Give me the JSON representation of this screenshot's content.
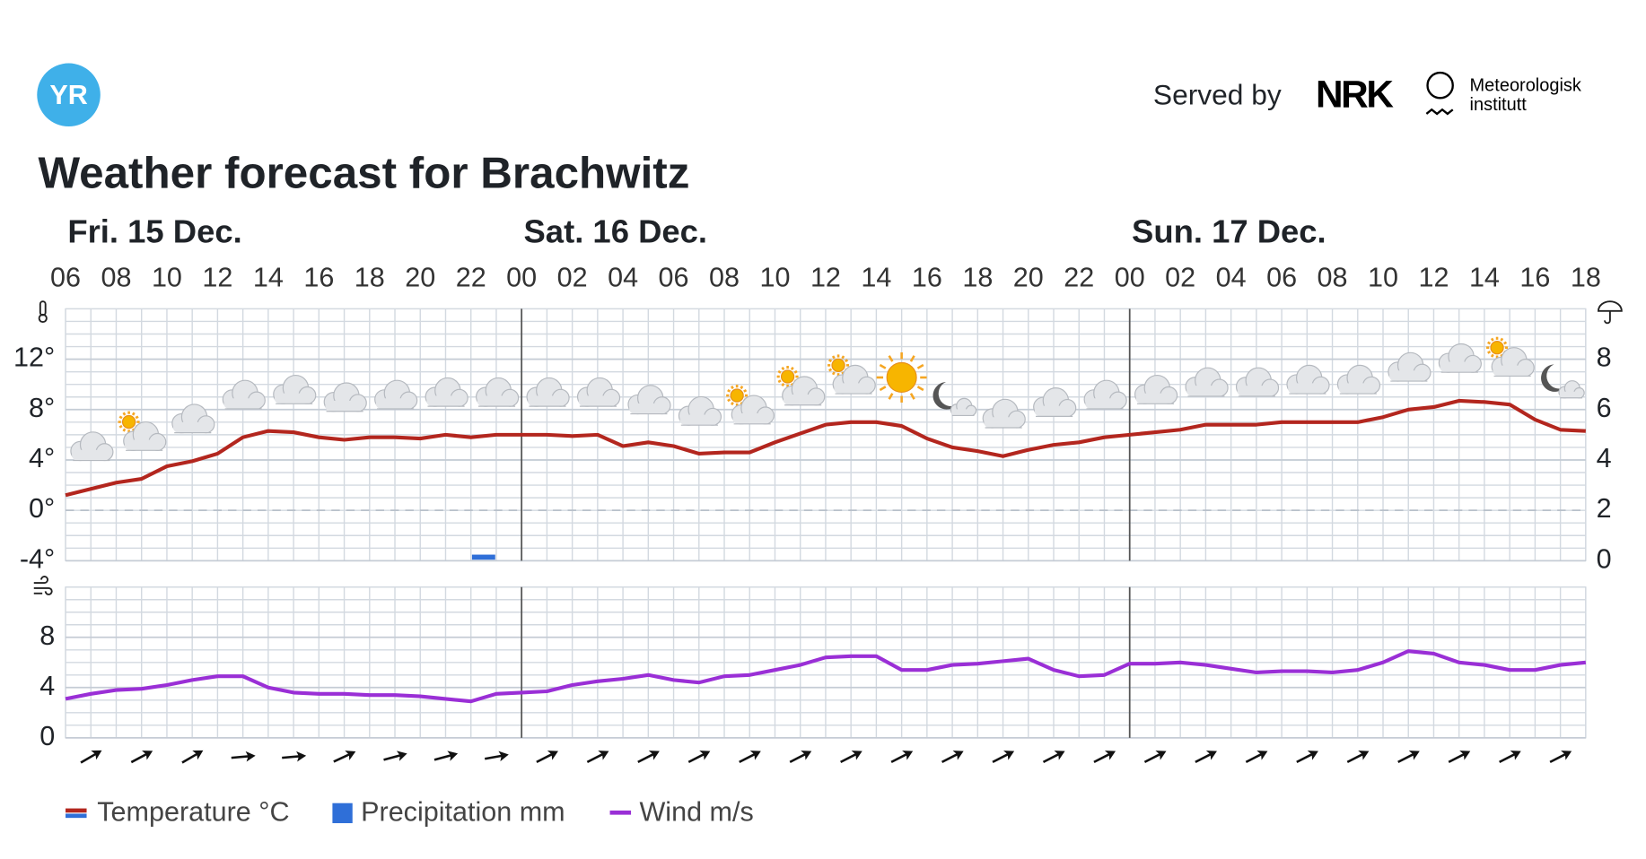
{
  "header": {
    "logo": "YR",
    "served_by": "Served by",
    "nrk": "NRK",
    "met": [
      "Meteorologisk",
      "institutt"
    ]
  },
  "title": "Weather forecast for Brachwitz",
  "chart_data": [
    {
      "type": "line",
      "days": [
        "Fri. 15 Dec.",
        "Sat. 16 Dec.",
        "Sun. 17 Dec."
      ],
      "x": [
        "06",
        null,
        "08",
        null,
        "10",
        null,
        "12",
        null,
        "14",
        null,
        "16",
        null,
        "18",
        null,
        "20",
        null,
        "22",
        null,
        "00",
        null,
        "02",
        null,
        "04",
        null,
        "06",
        null,
        "08",
        null,
        "10",
        null,
        "12",
        null,
        "14",
        null,
        "16",
        null,
        "18",
        null,
        "20",
        null,
        "22",
        null,
        "00",
        null,
        "02",
        null,
        "04",
        null,
        "06",
        null,
        "08",
        null,
        "10",
        null,
        "12",
        null,
        "14",
        null,
        "16",
        null,
        "18"
      ],
      "ylim": [
        -4,
        16
      ],
      "yticks": [
        {
          "value": -4,
          "label": "-4°"
        },
        {
          "value": 0,
          "label": "0°"
        },
        {
          "value": 4,
          "label": "4°"
        },
        {
          "value": 8,
          "label": "8°"
        },
        {
          "value": 12,
          "label": "12°"
        }
      ],
      "y2lim": [
        0,
        10
      ],
      "y2ticks": [
        0,
        2,
        4,
        6,
        8
      ],
      "grid": true,
      "series": [
        {
          "name": "Temperature °C",
          "color": "#b3261e",
          "values": [
            1.2,
            1.7,
            2.2,
            2.5,
            3.5,
            3.9,
            4.5,
            5.8,
            6.3,
            6.2,
            5.8,
            5.6,
            5.8,
            5.8,
            5.7,
            6.0,
            5.8,
            6.0,
            6.0,
            6.0,
            5.9,
            6.0,
            5.1,
            5.4,
            5.1,
            4.5,
            4.6,
            4.6,
            5.4,
            6.1,
            6.8,
            7.0,
            7.0,
            6.7,
            5.7,
            5.0,
            4.7,
            4.3,
            4.8,
            5.2,
            5.4,
            5.8,
            6.0,
            6.2,
            6.4,
            6.8,
            6.8,
            6.8,
            7.0,
            7.0,
            7.0,
            7.0,
            7.4,
            8.0,
            8.2,
            8.7,
            8.6,
            8.4,
            7.2,
            6.4,
            6.3
          ]
        },
        {
          "name": "Precipitation mm",
          "type": "bar",
          "axis": "y2",
          "color": "#2f6fd8",
          "values": [
            0,
            0,
            0,
            0,
            0,
            0,
            0,
            0,
            0,
            0,
            0,
            0,
            0,
            0,
            0,
            0,
            0.2,
            0,
            0,
            0,
            0,
            0,
            0,
            0,
            0,
            0,
            0,
            0,
            0,
            0,
            0,
            0,
            0,
            0,
            0,
            0,
            0,
            0,
            0,
            0,
            0,
            0,
            0,
            0,
            0,
            0,
            0,
            0,
            0,
            0,
            0,
            0,
            0,
            0,
            0,
            0,
            0,
            0,
            0,
            0,
            0
          ]
        }
      ]
    },
    {
      "type": "line",
      "ylim": [
        0,
        12
      ],
      "yticks": [
        0,
        4,
        8
      ],
      "grid": true,
      "series": [
        {
          "name": "Wind m/s",
          "color": "#9a2fd6",
          "values": [
            3.1,
            3.5,
            3.8,
            3.9,
            4.2,
            4.6,
            4.9,
            4.9,
            4.0,
            3.6,
            3.5,
            3.5,
            3.4,
            3.4,
            3.3,
            3.1,
            2.9,
            3.5,
            3.6,
            3.7,
            4.2,
            4.5,
            4.7,
            5.0,
            4.6,
            4.4,
            4.9,
            5.0,
            5.4,
            5.8,
            6.4,
            6.5,
            6.5,
            5.4,
            5.4,
            5.8,
            5.9,
            6.1,
            6.3,
            5.4,
            4.9,
            5.0,
            5.9,
            5.9,
            6.0,
            5.8,
            5.5,
            5.2,
            5.3,
            5.3,
            5.2,
            5.4,
            6.0,
            6.9,
            6.7,
            6.0,
            5.8,
            5.4,
            5.4,
            5.8,
            6.0
          ]
        }
      ]
    }
  ]
}
